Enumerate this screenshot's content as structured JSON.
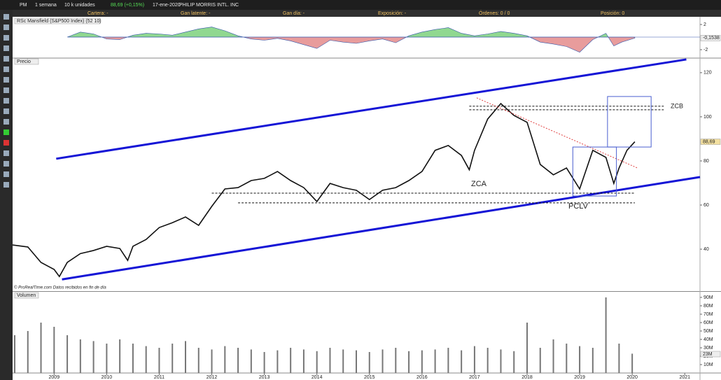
{
  "toolbar": {
    "symbol": "PM",
    "period": "1 semana",
    "units": "10 k unidades",
    "change": "88,69 (+0,15%)",
    "date": "17-ene-2020",
    "name": "PHILIP MORRIS INTL. INC"
  },
  "account": {
    "cartera": "Cartera: -",
    "latente": "Gan latente: -",
    "dia": "Gan día: -",
    "exposicion": "Exposición: -",
    "ordenes": "Órdenes: 0 / 0",
    "posicion": "Posición: 0"
  },
  "chart_data": [
    {
      "type": "area",
      "title": "RSc Mansfield (S&P500 Index) (52 10)",
      "color_up": "#90d890",
      "color_down": "#e89c9c",
      "line_color": "#3355aa",
      "xlim": [
        2008.21,
        2021.29
      ],
      "ylim": [
        -3.22,
        3.22
      ],
      "yticks": [
        2,
        -2
      ],
      "x": [
        2009.25,
        2009.5,
        2009.75,
        2010.0,
        2010.25,
        2010.5,
        2010.75,
        2011.0,
        2011.25,
        2011.5,
        2011.75,
        2012.0,
        2012.25,
        2012.5,
        2012.75,
        2013.0,
        2013.25,
        2013.5,
        2013.75,
        2014.0,
        2014.25,
        2014.5,
        2014.75,
        2015.0,
        2015.25,
        2015.5,
        2015.75,
        2016.0,
        2016.25,
        2016.5,
        2016.75,
        2017.0,
        2017.25,
        2017.5,
        2017.75,
        2018.0,
        2018.25,
        2018.5,
        2018.75,
        2019.0,
        2019.25,
        2019.5,
        2019.65,
        2019.8,
        2020.05
      ],
      "values": [
        0,
        0.8,
        0.5,
        -0.3,
        -0.4,
        0.3,
        0.6,
        0.5,
        0.3,
        0.8,
        1.3,
        1.6,
        1.0,
        0.2,
        -0.3,
        -0.5,
        -0.2,
        -0.6,
        -1.2,
        -1.8,
        -0.5,
        -0.8,
        -1.0,
        -0.6,
        -0.3,
        -0.9,
        0.2,
        0.8,
        1.2,
        1.5,
        0.6,
        0.2,
        0.5,
        0.9,
        0.6,
        0.2,
        -0.8,
        -1.1,
        -1.5,
        -2.4,
        -0.4,
        0.6,
        -1.4,
        -0.8,
        -0.1538
      ],
      "value_labels": [
        null,
        null,
        null,
        null,
        null,
        null,
        null,
        null,
        null,
        null,
        null,
        null,
        null,
        null,
        null,
        null,
        null,
        null,
        null,
        null,
        null,
        null,
        null,
        null,
        null,
        null,
        null,
        null,
        null,
        null,
        null,
        null,
        null,
        null,
        null,
        null,
        null,
        null,
        null,
        null,
        null,
        null,
        null,
        null,
        "-0,1538"
      ]
    },
    {
      "type": "line",
      "title": "Precio",
      "color": "#111111",
      "note": "© ProRealTime.com  Datos recibidos en fin de día",
      "xlim": [
        2008.21,
        2021.29
      ],
      "ylim": [
        21.3,
        126.3
      ],
      "yticks": [
        120,
        100,
        80,
        60,
        40
      ],
      "x": [
        2008.21,
        2008.5,
        2008.75,
        2009.0,
        2009.1,
        2009.25,
        2009.5,
        2009.75,
        2010.0,
        2010.25,
        2010.4,
        2010.5,
        2010.75,
        2011.0,
        2011.25,
        2011.5,
        2011.75,
        2012.0,
        2012.25,
        2012.5,
        2012.75,
        2013.0,
        2013.25,
        2013.5,
        2013.75,
        2014.0,
        2014.25,
        2014.5,
        2014.75,
        2015.0,
        2015.25,
        2015.5,
        2015.75,
        2016.0,
        2016.25,
        2016.5,
        2016.75,
        2016.9,
        2017.0,
        2017.25,
        2017.5,
        2017.75,
        2018.0,
        2018.25,
        2018.5,
        2018.75,
        2019.0,
        2019.25,
        2019.5,
        2019.65,
        2019.75,
        2019.9,
        2020.05
      ],
      "values": [
        41.9,
        41,
        34,
        30.8,
        27.6,
        34,
        38,
        39.4,
        41.3,
        40.3,
        34.9,
        41.3,
        44.4,
        49.8,
        52,
        54.6,
        50.8,
        59.4,
        67.3,
        67.9,
        71.1,
        72.1,
        75.2,
        71.1,
        67.9,
        61.6,
        69.8,
        67.9,
        66.7,
        62.5,
        66.7,
        67.9,
        71.1,
        75.2,
        84.8,
        87,
        82.5,
        76,
        84.8,
        99,
        106,
        100.6,
        97.5,
        78.4,
        73.7,
        76.8,
        67.3,
        84.8,
        81.6,
        69.8,
        76.8,
        84.8,
        88.69
      ],
      "value_labels": [
        null,
        null,
        null,
        null,
        null,
        null,
        null,
        null,
        null,
        null,
        null,
        null,
        null,
        null,
        null,
        null,
        null,
        null,
        null,
        null,
        null,
        null,
        null,
        null,
        null,
        null,
        null,
        null,
        null,
        null,
        null,
        null,
        null,
        null,
        null,
        null,
        null,
        null,
        null,
        null,
        null,
        null,
        null,
        null,
        null,
        null,
        null,
        null,
        null,
        null,
        null,
        null,
        "88,69"
      ],
      "trendlines": [
        {
          "color": "#1515d6",
          "x": [
            2009.04,
            2021.03
          ],
          "y": [
            81,
            126
          ]
        },
        {
          "color": "#1515d6",
          "x": [
            2009.15,
            2021.29
          ],
          "y": [
            26.3,
            72.7
          ]
        }
      ],
      "levels": [
        {
          "x": [
            2016.9,
            2020.6
          ],
          "y": [
            104.8,
            104.8
          ]
        },
        {
          "x": [
            2016.9,
            2020.6
          ],
          "y": [
            103.2,
            103.2
          ]
        },
        {
          "x": [
            2012.0,
            2020.05
          ],
          "y": [
            65.4,
            65.4
          ]
        },
        {
          "x": [
            2012.5,
            2020.05
          ],
          "y": [
            61,
            61
          ]
        }
      ],
      "resistance": {
        "color": "#e04040",
        "x": [
          2017.04,
          2020.1
        ],
        "y": [
          108.6,
          76.8
        ]
      },
      "zones": [
        {
          "x": [
            2018.87,
            2019.7
          ],
          "y": [
            64.1,
            86.3
          ]
        },
        {
          "x": [
            2019.53,
            2020.36
          ],
          "y": [
            86.3,
            109.2
          ]
        }
      ],
      "annotations": [
        "ZCB",
        "ZCA",
        "PCLV"
      ]
    },
    {
      "type": "bar",
      "title": "Volumen",
      "color": "#777777",
      "xlim": [
        2008.21,
        2021.29
      ],
      "ylim": [
        0,
        95800000
      ],
      "yticks": [
        {
          "value": 90000000,
          "label": "90M"
        },
        {
          "value": 80000000,
          "label": "80M"
        },
        {
          "value": 70000000,
          "label": "70M"
        },
        {
          "value": 60000000,
          "label": "60M"
        },
        {
          "value": 50000000,
          "label": "50M"
        },
        {
          "value": 40000000,
          "label": "40M"
        },
        {
          "value": 30000000,
          "label": "30M"
        },
        {
          "value": 20000000,
          "label": "20M"
        },
        {
          "value": 10000000,
          "label": "10M"
        }
      ],
      "xticks": [
        2009,
        2010,
        2011,
        2012,
        2013,
        2014,
        2015,
        2016,
        2017,
        2018,
        2019,
        2020,
        2021
      ],
      "x": [
        2008.25,
        2008.5,
        2008.75,
        2009.0,
        2009.25,
        2009.5,
        2009.75,
        2010.0,
        2010.25,
        2010.5,
        2010.75,
        2011.0,
        2011.25,
        2011.5,
        2011.75,
        2012.0,
        2012.25,
        2012.5,
        2012.75,
        2013.0,
        2013.25,
        2013.5,
        2013.75,
        2014.0,
        2014.25,
        2014.5,
        2014.75,
        2015.0,
        2015.25,
        2015.5,
        2015.75,
        2016.0,
        2016.25,
        2016.5,
        2016.75,
        2017.0,
        2017.25,
        2017.5,
        2017.75,
        2018.0,
        2018.25,
        2018.5,
        2018.75,
        2019.0,
        2019.25,
        2019.5,
        2019.75,
        2020.0
      ],
      "values": [
        45000000,
        50000000,
        60000000,
        55000000,
        45000000,
        40000000,
        38000000,
        35000000,
        40000000,
        35000000,
        32000000,
        30000000,
        35000000,
        38000000,
        30000000,
        28000000,
        32000000,
        30000000,
        28000000,
        25000000,
        27000000,
        30000000,
        28000000,
        26000000,
        30000000,
        28000000,
        27000000,
        25000000,
        28000000,
        30000000,
        26000000,
        27000000,
        28000000,
        30000000,
        27000000,
        32000000,
        30000000,
        28000000,
        26000000,
        60000000,
        30000000,
        40000000,
        35000000,
        32000000,
        30000000,
        90000000,
        35000000,
        23000000
      ],
      "value_labels": [
        null,
        null,
        null,
        null,
        null,
        null,
        null,
        null,
        null,
        null,
        null,
        null,
        null,
        null,
        null,
        null,
        null,
        null,
        null,
        null,
        null,
        null,
        null,
        null,
        null,
        null,
        null,
        null,
        null,
        null,
        null,
        null,
        null,
        null,
        null,
        null,
        null,
        null,
        null,
        null,
        null,
        null,
        null,
        null,
        null,
        null,
        null,
        "23M"
      ]
    }
  ]
}
